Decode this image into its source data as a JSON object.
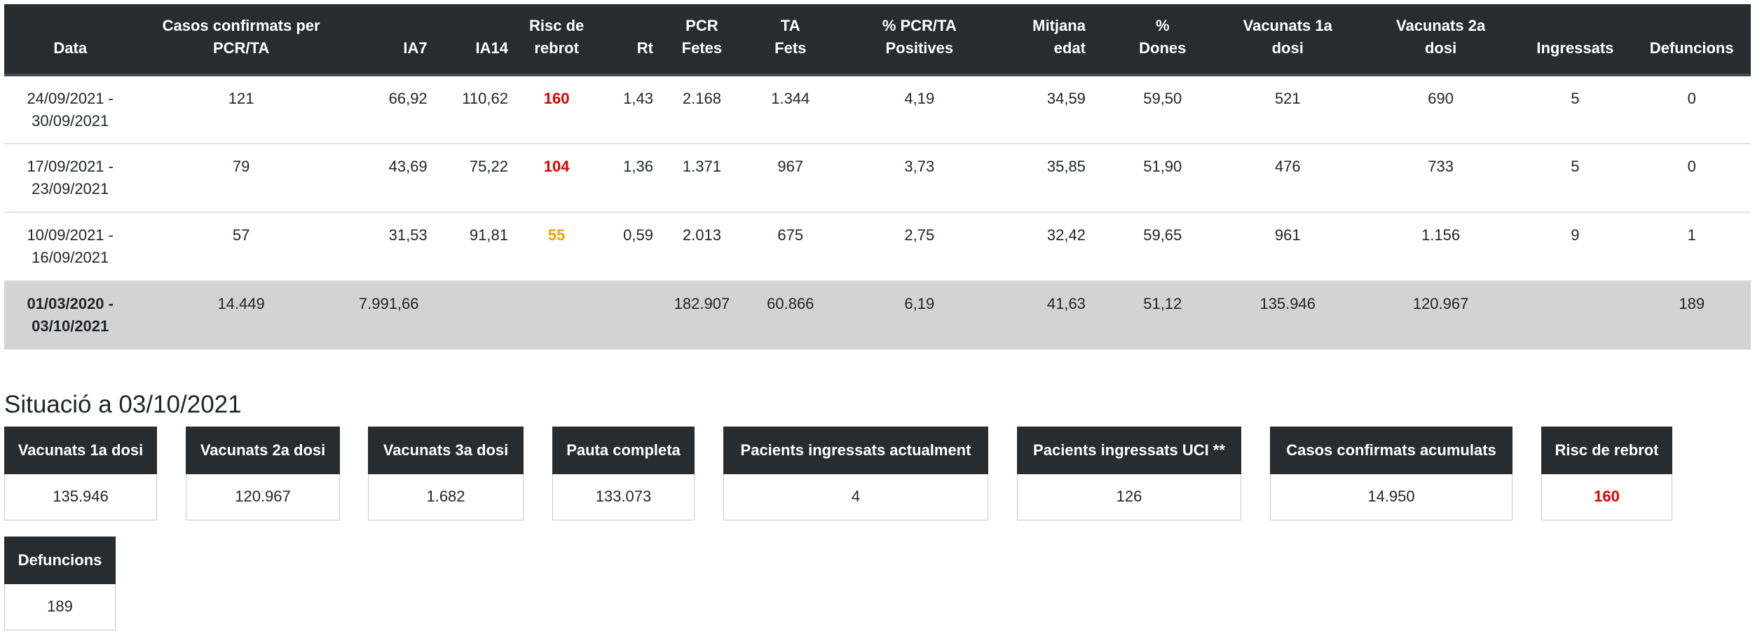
{
  "table": {
    "headers": [
      [
        "Data",
        ""
      ],
      [
        "Casos confirmats per",
        "PCR/TA"
      ],
      [
        "IA7",
        ""
      ],
      [
        "IA14",
        ""
      ],
      [
        "Risc de",
        "rebrot"
      ],
      [
        "Rt",
        ""
      ],
      [
        "PCR",
        "Fetes"
      ],
      [
        "TA",
        "Fets"
      ],
      [
        "% PCR/TA",
        "Positives"
      ],
      [
        "Mitjana",
        "edat"
      ],
      [
        "%",
        "Dones"
      ],
      [
        "Vacunats 1a",
        "dosi"
      ],
      [
        "Vacunats 2a",
        "dosi"
      ],
      [
        "Ingressats",
        ""
      ],
      [
        "Defuncions",
        ""
      ]
    ],
    "rows": [
      {
        "date": [
          "24/09/2021 -",
          "30/09/2021"
        ],
        "casos": "121",
        "ia7": "66,92",
        "ia14": "110,62",
        "risc": "160",
        "risc_level": "red",
        "rt": "1,43",
        "pcr": "2.168",
        "ta": "1.344",
        "pos": "4,19",
        "edat": "34,59",
        "dones": "59,50",
        "vac1": "521",
        "vac2": "690",
        "ingressats": "5",
        "defuncions": "0"
      },
      {
        "date": [
          "17/09/2021 -",
          "23/09/2021"
        ],
        "casos": "79",
        "ia7": "43,69",
        "ia14": "75,22",
        "risc": "104",
        "risc_level": "red",
        "rt": "1,36",
        "pcr": "1.371",
        "ta": "967",
        "pos": "3,73",
        "edat": "35,85",
        "dones": "51,90",
        "vac1": "476",
        "vac2": "733",
        "ingressats": "5",
        "defuncions": "0"
      },
      {
        "date": [
          "10/09/2021 -",
          "16/09/2021"
        ],
        "casos": "57",
        "ia7": "31,53",
        "ia14": "91,81",
        "risc": "55",
        "risc_level": "orange",
        "rt": "0,59",
        "pcr": "2.013",
        "ta": "675",
        "pos": "2,75",
        "edat": "32,42",
        "dones": "59,65",
        "vac1": "961",
        "vac2": "1.156",
        "ingressats": "9",
        "defuncions": "1"
      }
    ],
    "total": {
      "date": [
        "01/03/2020 -",
        "03/10/2021"
      ],
      "casos": "14.449",
      "ia7": "7.991,66",
      "ia14": "",
      "risc": "",
      "rt": "",
      "pcr": "182.907",
      "ta": "60.866",
      "pos": "6,19",
      "edat": "41,63",
      "dones": "51,12",
      "vac1": "135.946",
      "vac2": "120.967",
      "ingressats": "",
      "defuncions": "189"
    }
  },
  "situation": {
    "title": "Situació a 03/10/2021",
    "cards": [
      {
        "label": "Vacunats 1a dosi",
        "value": "135.946"
      },
      {
        "label": "Vacunats 2a dosi",
        "value": "120.967"
      },
      {
        "label": "Vacunats 3a dosi",
        "value": "1.682"
      },
      {
        "label": "Pauta completa",
        "value": "133.073"
      },
      {
        "label": "Pacients ingressats actualment",
        "value": "4"
      },
      {
        "label": "Pacients ingressats UCI **",
        "value": "126"
      },
      {
        "label": "Casos confirmats acumulats",
        "value": "14.950"
      },
      {
        "label": "Risc de rebrot",
        "value": "160"
      },
      {
        "label": "Defuncions",
        "value": "189"
      }
    ]
  },
  "colors": {
    "header_bg": "#272c31",
    "risk_red": "#e00000",
    "risk_orange": "#f0a000",
    "total_row_bg": "#d3d3d3"
  }
}
